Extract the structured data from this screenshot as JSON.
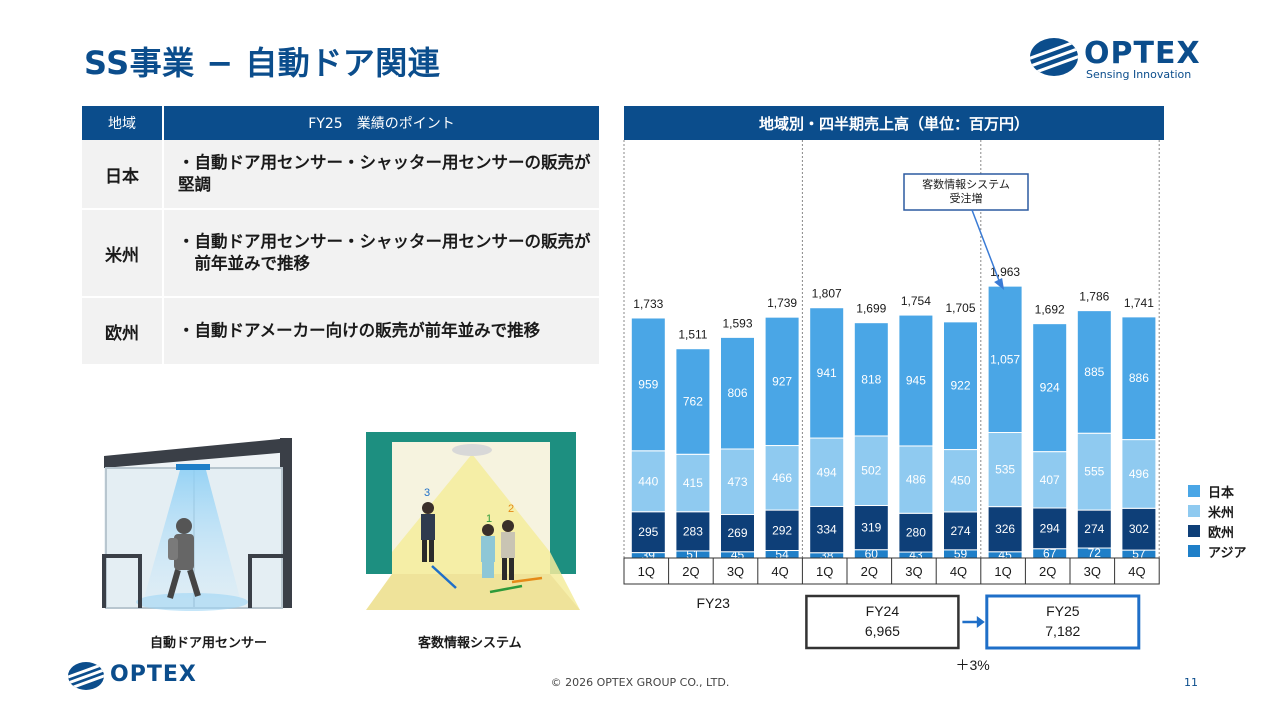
{
  "page": {
    "title": "SS事業 − 自動ドア関連",
    "footer": "© 2026 OPTEX GROUP CO., LTD.",
    "page_number": "11"
  },
  "logo": {
    "word": "OPTEX",
    "tagline": "Sensing Innovation"
  },
  "table": {
    "head_region": "地域",
    "head_points": "FY25　業績のポイント",
    "rows": [
      {
        "region": "日本",
        "lines": [
          "・自動ドア用センサー・シャッター用センサーの販売が堅調"
        ]
      },
      {
        "region": "米州",
        "lines": [
          "・自動ドア用センサー・シャッター用センサーの販売が",
          "　前年並みで推移"
        ]
      },
      {
        "region": "欧州",
        "lines": [
          "・自動ドアメーカー向けの販売が前年並みで推移"
        ]
      }
    ]
  },
  "illustrations": {
    "door_caption": "自動ドア用センサー",
    "count_caption": "客数情報システム",
    "count_numbers": [
      "3",
      "1",
      "2"
    ]
  },
  "chart_data": {
    "type": "bar",
    "stacked": true,
    "title": "地域別・四半期売上高（単位：百万円）",
    "categories": [
      "1Q",
      "2Q",
      "3Q",
      "4Q",
      "1Q",
      "2Q",
      "3Q",
      "4Q",
      "1Q",
      "2Q",
      "3Q",
      "4Q"
    ],
    "fiscal_years": [
      {
        "label": "FY23",
        "from": 0,
        "to": 3,
        "total": ""
      },
      {
        "label": "FY24",
        "from": 4,
        "to": 7,
        "total": "6,965"
      },
      {
        "label": "FY25",
        "from": 8,
        "to": 11,
        "total": "7,182"
      }
    ],
    "series": [
      {
        "name": "アジア",
        "color": "#1f7fc8",
        "values": [
          39,
          51,
          45,
          54,
          38,
          60,
          43,
          59,
          45,
          67,
          72,
          57
        ]
      },
      {
        "name": "欧州",
        "color": "#0e3f78",
        "values": [
          295,
          283,
          269,
          292,
          334,
          319,
          280,
          274,
          326,
          294,
          274,
          302
        ]
      },
      {
        "name": "米州",
        "color": "#8fcaf0",
        "values": [
          440,
          415,
          473,
          466,
          494,
          502,
          486,
          450,
          535,
          407,
          555,
          496
        ]
      },
      {
        "name": "日本",
        "color": "#4aa6e6",
        "values": [
          959,
          762,
          806,
          927,
          941,
          818,
          945,
          922,
          1057,
          924,
          885,
          886
        ]
      }
    ],
    "totals": [
      "1,733",
      "1,511",
      "1,593",
      "1,739",
      "1,807",
      "1,699",
      "1,754",
      "1,705",
      "1,963",
      "1,692",
      "1,786",
      "1,741"
    ],
    "legend_order": [
      "日本",
      "米州",
      "欧州",
      "アジア"
    ],
    "annotation": "客数情報システム\n受注増",
    "growth_label": "＋3%",
    "ylim": [
      0,
      2100
    ]
  }
}
